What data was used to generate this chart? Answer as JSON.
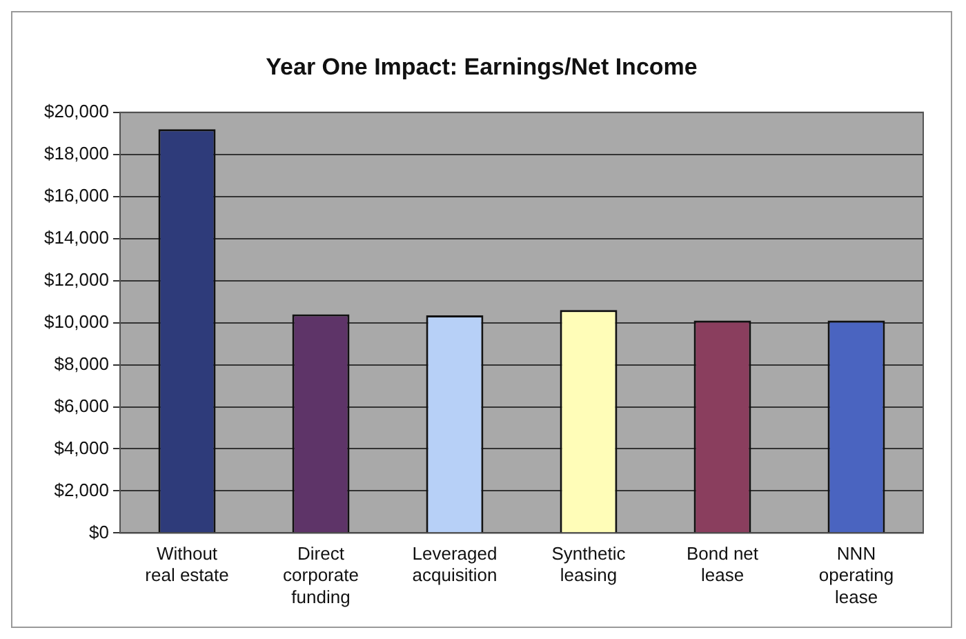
{
  "chart_data": {
    "type": "bar",
    "title": "Year One Impact: Earnings/Net Income",
    "categories": [
      "Without real estate",
      "Direct corporate funding",
      "Leveraged acquisition",
      "Synthetic leasing",
      "Bond net lease",
      "NNN operating lease"
    ],
    "values": [
      19200,
      10400,
      10350,
      10600,
      10100,
      10100
    ],
    "colors": [
      "#2e3b7a",
      "#5e3468",
      "#b7d0f7",
      "#fffdb8",
      "#8a3e5e",
      "#4a64c0"
    ],
    "ylim": [
      0,
      20000
    ],
    "yticks": [
      {
        "value": 0,
        "label": "$0"
      },
      {
        "value": 2000,
        "label": "$2,000"
      },
      {
        "value": 4000,
        "label": "$4,000"
      },
      {
        "value": 6000,
        "label": "$6,000"
      },
      {
        "value": 8000,
        "label": "$8,000"
      },
      {
        "value": 10000,
        "label": "$10,000"
      },
      {
        "value": 12000,
        "label": "$12,000"
      },
      {
        "value": 14000,
        "label": "$14,000"
      },
      {
        "value": 16000,
        "label": "$16,000"
      },
      {
        "value": 18000,
        "label": "$18,000"
      },
      {
        "value": 20000,
        "label": "$20,000"
      }
    ],
    "grid": "y",
    "legend": false
  }
}
